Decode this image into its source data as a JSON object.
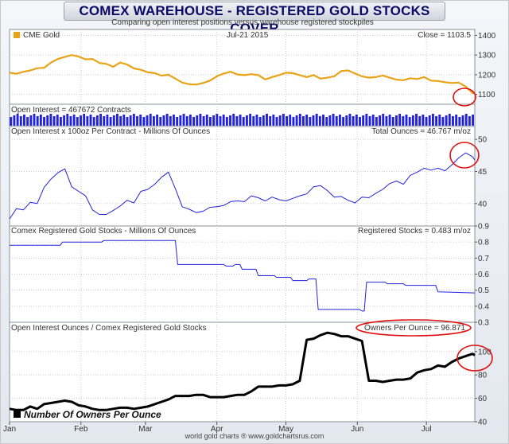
{
  "header": {
    "title": "COMEX WAREHOUSE - REGISTERED GOLD STOCKS COVER",
    "subtitle": "Comparing open interest positions versus warehouse registered stockpiles"
  },
  "footer": {
    "credit": "world gold charts ® www.goldchartsrus.com"
  },
  "legend": {
    "label": "Number Of Owners Per Ounce"
  },
  "colors": {
    "gold": "#e8a317",
    "blue": "#2222dd",
    "black": "#000000",
    "highlight": "#dd1111"
  },
  "chart_data": [
    {
      "id": "gold",
      "type": "line",
      "label_left": "CME Gold",
      "label_center": "Jul-21  2015",
      "label_right": "Close = 1103.5",
      "ylim": [
        1050,
        1430
      ],
      "yticks": [
        1100,
        1200,
        1300,
        1400
      ],
      "x": [
        0,
        3,
        6,
        9,
        12,
        15,
        18,
        21,
        24,
        27,
        30,
        33,
        36,
        39,
        42,
        45,
        48,
        51,
        54,
        57,
        60,
        63,
        66,
        69,
        72,
        75,
        78,
        81,
        84,
        87,
        90,
        93,
        96,
        99,
        102,
        105,
        108,
        111,
        114,
        117,
        120,
        123,
        126,
        129,
        132,
        135,
        138,
        141,
        144,
        147,
        150,
        153,
        156,
        159,
        162,
        165,
        168,
        171,
        174,
        177,
        180,
        183,
        186,
        189,
        192,
        195,
        198,
        201,
        202
      ],
      "values": [
        1210,
        1205,
        1215,
        1222,
        1233,
        1235,
        1262,
        1280,
        1290,
        1300,
        1292,
        1278,
        1280,
        1260,
        1255,
        1240,
        1262,
        1252,
        1232,
        1225,
        1212,
        1208,
        1195,
        1200,
        1180,
        1160,
        1152,
        1150,
        1158,
        1170,
        1192,
        1206,
        1215,
        1201,
        1198,
        1203,
        1198,
        1176,
        1188,
        1198,
        1210,
        1208,
        1198,
        1188,
        1198,
        1180,
        1185,
        1192,
        1218,
        1222,
        1206,
        1192,
        1185,
        1188,
        1196,
        1185,
        1175,
        1172,
        1182,
        1178,
        1188,
        1170,
        1168,
        1162,
        1158,
        1160,
        1140,
        1108,
        1103.5
      ]
    },
    {
      "id": "oi_contracts",
      "type": "bar",
      "label_left": "Open Interest = 467672 Contracts"
    },
    {
      "id": "oi_ounces",
      "type": "line",
      "label_left": "Open Interest x 100oz Per Contract  -  Millions Of Ounces",
      "label_right": "Total Ounces = 46.767 m/oz",
      "ylim": [
        36.5,
        52
      ],
      "yticks": [
        40,
        45,
        50
      ],
      "x": [
        0,
        3,
        6,
        9,
        12,
        15,
        18,
        21,
        24,
        27,
        30,
        33,
        36,
        39,
        42,
        45,
        48,
        51,
        54,
        57,
        60,
        63,
        66,
        69,
        72,
        75,
        78,
        81,
        84,
        87,
        90,
        93,
        96,
        99,
        102,
        105,
        108,
        111,
        114,
        117,
        120,
        123,
        126,
        129,
        132,
        135,
        138,
        141,
        144,
        147,
        150,
        153,
        156,
        159,
        162,
        165,
        168,
        171,
        174,
        177,
        180,
        183,
        186,
        189,
        192,
        195,
        198,
        201,
        202
      ],
      "values": [
        37.6,
        39.2,
        39.0,
        40.2,
        40.0,
        42.5,
        43.8,
        44.8,
        45.4,
        42.6,
        41.9,
        41.2,
        39.0,
        38.3,
        38.3,
        38.9,
        39.6,
        40.5,
        40.1,
        41.9,
        42.2,
        43.0,
        44.1,
        44.9,
        42.3,
        39.5,
        39.1,
        38.6,
        38.8,
        39.4,
        39.5,
        39.7,
        40.3,
        40.4,
        40.3,
        41.2,
        40.9,
        40.4,
        41.0,
        40.6,
        40.4,
        40.8,
        41.2,
        41.5,
        42.6,
        42.8,
        42.0,
        41.0,
        41.1,
        40.5,
        40.1,
        41.0,
        40.9,
        41.6,
        42.2,
        43.1,
        43.5,
        43.0,
        44.4,
        44.9,
        45.5,
        45.2,
        45.5,
        45.1,
        46.0,
        47.1,
        47.9,
        47.3,
        46.767
      ]
    },
    {
      "id": "registered",
      "type": "line",
      "label_left": "Comex Registered Gold Stocks  -  Millions Of Ounces",
      "label_right": "Registered Stocks = 0.483 m/oz",
      "ylim": [
        0.3,
        0.9
      ],
      "yticks": [
        0.3,
        0.4,
        0.5,
        0.6,
        0.7,
        0.8,
        0.9
      ],
      "x": [
        0,
        22,
        23,
        40,
        41,
        52,
        53,
        72,
        73,
        88,
        89,
        93,
        94,
        97,
        98,
        100,
        101,
        107,
        108,
        115,
        116,
        122,
        123,
        129,
        130,
        133,
        134,
        152,
        153,
        154,
        155,
        163,
        164,
        171,
        172,
        185,
        186,
        202
      ],
      "values": [
        0.78,
        0.78,
        0.8,
        0.8,
        0.81,
        0.81,
        0.81,
        0.81,
        0.66,
        0.66,
        0.66,
        0.66,
        0.65,
        0.65,
        0.66,
        0.66,
        0.63,
        0.63,
        0.59,
        0.59,
        0.58,
        0.58,
        0.56,
        0.56,
        0.57,
        0.57,
        0.38,
        0.38,
        0.37,
        0.37,
        0.55,
        0.55,
        0.54,
        0.54,
        0.53,
        0.53,
        0.49,
        0.483
      ]
    },
    {
      "id": "ratio",
      "type": "line",
      "label_left": "Open Interest Ounces / Comex Registered Gold Stocks",
      "label_right": "Owners Per Ounce = 96.871",
      "ylim": [
        40,
        125
      ],
      "yticks": [
        40,
        60,
        80,
        100
      ],
      "x": [
        0,
        3,
        6,
        9,
        12,
        15,
        18,
        21,
        24,
        27,
        30,
        33,
        36,
        39,
        42,
        45,
        48,
        51,
        54,
        57,
        60,
        63,
        66,
        69,
        72,
        75,
        78,
        81,
        84,
        87,
        90,
        93,
        96,
        99,
        102,
        105,
        108,
        111,
        114,
        117,
        120,
        123,
        126,
        129,
        132,
        135,
        138,
        141,
        144,
        147,
        150,
        153,
        156,
        159,
        162,
        165,
        168,
        171,
        174,
        177,
        180,
        183,
        186,
        189,
        192,
        195,
        198,
        201,
        202
      ],
      "values": [
        51,
        50,
        50,
        53,
        51,
        55,
        56,
        57,
        58,
        57,
        54,
        53,
        51,
        50,
        50,
        51,
        52,
        52,
        51,
        52,
        53,
        55,
        57,
        59,
        62,
        62,
        62,
        63,
        63,
        61,
        61,
        61,
        62,
        63,
        63,
        66,
        70,
        70,
        70,
        71,
        71,
        72,
        75,
        110,
        111,
        114,
        116,
        115,
        113,
        113,
        111,
        109,
        75,
        75,
        74,
        75,
        76,
        76,
        77,
        82,
        84,
        85,
        88,
        87,
        91,
        94,
        96,
        98,
        96.871
      ]
    }
  ],
  "x_axis": {
    "range": [
      0,
      202
    ],
    "ticks": [
      {
        "label": "Jan",
        "x": 0
      },
      {
        "label": "Feb",
        "x": 31
      },
      {
        "label": "Mar",
        "x": 59
      },
      {
        "label": "Apr",
        "x": 90
      },
      {
        "label": "May",
        "x": 120
      },
      {
        "label": "Jun",
        "x": 151
      },
      {
        "label": "Jul",
        "x": 181
      }
    ]
  }
}
